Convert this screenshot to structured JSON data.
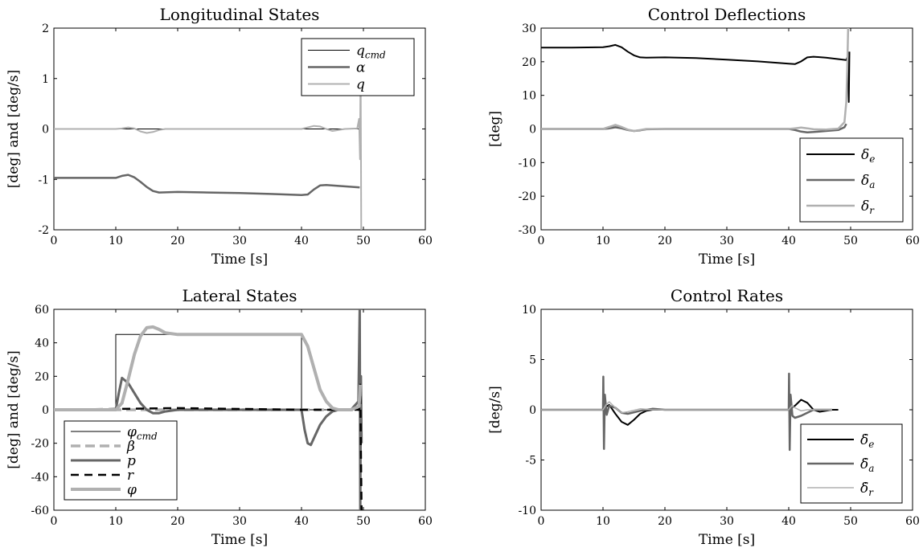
{
  "chart_data": [
    {
      "id": "longitudinal",
      "type": "line",
      "title": "Longitudinal States",
      "xlabel": "Time [s]",
      "ylabel": "[deg] and [deg/s]",
      "xlim": [
        0,
        60
      ],
      "ylim": [
        -2,
        2
      ],
      "xticks": [
        0,
        10,
        20,
        30,
        40,
        50,
        60
      ],
      "yticks": [
        -2,
        -1,
        0,
        1,
        2
      ],
      "legend_position": "top-right",
      "series": [
        {
          "name": "q",
          "sub": "cmd",
          "color": "#000000",
          "width": 1,
          "dash": "",
          "x": [
            0,
            49.5
          ],
          "y": [
            0,
            0
          ]
        },
        {
          "name": "α",
          "sub": "",
          "color": "#666666",
          "width": 2.5,
          "dash": "",
          "x": [
            0,
            10,
            11,
            12,
            13,
            14,
            15,
            16,
            17,
            20,
            25,
            30,
            35,
            40,
            41,
            42,
            43,
            44,
            46,
            49.4
          ],
          "y": [
            -0.97,
            -0.97,
            -0.93,
            -0.91,
            -0.96,
            -1.05,
            -1.15,
            -1.23,
            -1.26,
            -1.25,
            -1.26,
            -1.27,
            -1.29,
            -1.31,
            -1.3,
            -1.2,
            -1.12,
            -1.11,
            -1.13,
            -1.16
          ]
        },
        {
          "name": "q",
          "sub": "",
          "color": "#b0b0b0",
          "width": 2,
          "dash": "",
          "x": [
            0,
            10,
            11,
            12,
            13,
            14,
            15,
            16,
            17,
            18,
            20,
            40,
            41,
            42,
            43,
            44,
            45,
            46,
            47,
            49.0,
            49.3,
            49.45,
            49.55,
            49.65
          ],
          "y": [
            0,
            0,
            0.01,
            0.03,
            0.01,
            -0.05,
            -0.08,
            -0.06,
            -0.02,
            0,
            0,
            0,
            0.03,
            0.06,
            0.05,
            0,
            -0.04,
            -0.02,
            0,
            0.01,
            0.2,
            -0.6,
            1.5,
            -2
          ]
        }
      ]
    },
    {
      "id": "deflections",
      "type": "line",
      "title": "Control Deflections",
      "xlabel": "Time [s]",
      "ylabel": "[deg]",
      "xlim": [
        0,
        60
      ],
      "ylim": [
        -30,
        30
      ],
      "xticks": [
        0,
        10,
        20,
        30,
        40,
        50,
        60
      ],
      "yticks": [
        -30,
        -20,
        -10,
        0,
        10,
        20,
        30
      ],
      "legend_position": "bottom-right",
      "series": [
        {
          "name": "δ",
          "sub": "e",
          "color": "#000000",
          "width": 2,
          "dash": "",
          "x": [
            0,
            5,
            10,
            11,
            12,
            13,
            14,
            15,
            16,
            17,
            20,
            25,
            30,
            35,
            40,
            41,
            42,
            43,
            44,
            46,
            49.3,
            49.5,
            49.7,
            49.8
          ],
          "y": [
            24.2,
            24.2,
            24.3,
            24.6,
            25.0,
            24.3,
            23.0,
            21.9,
            21.3,
            21.2,
            21.3,
            21.1,
            20.6,
            20.1,
            19.4,
            19.3,
            20.1,
            21.3,
            21.5,
            21.2,
            20.5,
            21.5,
            8,
            23
          ]
        },
        {
          "name": "δ",
          "sub": "a",
          "color": "#666666",
          "width": 2.5,
          "dash": "",
          "x": [
            0,
            10,
            11,
            12,
            13,
            14,
            15,
            16,
            17,
            20,
            40,
            41,
            42,
            43,
            44,
            46,
            48,
            49.0,
            49.3
          ],
          "y": [
            0,
            0,
            0.2,
            0.5,
            0.2,
            -0.3,
            -0.6,
            -0.4,
            -0.1,
            0,
            0,
            -0.3,
            -0.8,
            -1.0,
            -0.9,
            -0.6,
            -0.3,
            0.5,
            1.5
          ]
        },
        {
          "name": "δ",
          "sub": "r",
          "color": "#b0b0b0",
          "width": 2.5,
          "dash": "",
          "x": [
            0,
            10,
            11,
            12,
            13,
            14,
            15,
            16,
            17,
            20,
            40,
            41,
            42,
            43,
            44,
            46,
            48,
            49.0,
            49.3,
            49.45,
            49.6
          ],
          "y": [
            0,
            0,
            0.6,
            1.2,
            0.6,
            -0.2,
            -0.6,
            -0.3,
            0,
            0,
            0,
            0.2,
            0.4,
            0.2,
            -0.1,
            -0.2,
            0.1,
            2,
            8,
            18,
            30
          ]
        }
      ]
    },
    {
      "id": "lateral",
      "type": "line",
      "title": "Lateral States",
      "xlabel": "Time [s]",
      "ylabel": "[deg] and [deg/s]",
      "xlim": [
        0,
        60
      ],
      "ylim": [
        -60,
        60
      ],
      "xticks": [
        0,
        10,
        20,
        30,
        40,
        50,
        60
      ],
      "yticks": [
        -60,
        -40,
        -20,
        0,
        20,
        40,
        60
      ],
      "legend_position": "bottom-left",
      "series": [
        {
          "name": "φ",
          "sub": "cmd",
          "color": "#000000",
          "width": 1,
          "dash": "",
          "x": [
            0,
            10,
            10,
            40,
            40,
            49.5
          ],
          "y": [
            0,
            0,
            45,
            45,
            0,
            0
          ]
        },
        {
          "name": "β",
          "sub": "",
          "color": "#b0b0b0",
          "width": 3.5,
          "dash": "12,6",
          "x": [
            0,
            10,
            20,
            30,
            40,
            45,
            49.5
          ],
          "y": [
            0,
            0,
            0,
            0,
            0,
            0,
            0
          ]
        },
        {
          "name": "p",
          "sub": "",
          "color": "#666666",
          "width": 3,
          "dash": "",
          "x": [
            0,
            10,
            10.5,
            11,
            12,
            13,
            14,
            15,
            16,
            17,
            18,
            20,
            40,
            40.5,
            41,
            41.5,
            42,
            43,
            44,
            45,
            46,
            48,
            49.2,
            49.4,
            49.5,
            49.6,
            49.7
          ],
          "y": [
            0,
            0,
            10,
            19,
            16,
            10,
            4,
            0,
            -2,
            -2,
            -1,
            0,
            0,
            -12,
            -20,
            -21,
            -17,
            -9,
            -4,
            -1,
            0,
            0,
            5,
            60,
            -60,
            20,
            -20
          ]
        },
        {
          "name": "r",
          "sub": "",
          "color": "#000000",
          "width": 2.5,
          "dash": "10,7",
          "x": [
            0,
            20,
            40,
            49.3,
            49.5,
            49.6,
            49.7
          ],
          "y": [
            0,
            1,
            0,
            0,
            15,
            -25,
            -60
          ]
        },
        {
          "name": "φ",
          "sub": "",
          "color": "#b0b0b0",
          "width": 4,
          "dash": "",
          "x": [
            0,
            10,
            11,
            12,
            13,
            14,
            15,
            16,
            17,
            18,
            20,
            25,
            30,
            35,
            40,
            41,
            42,
            43,
            44,
            45,
            46,
            48,
            49.3,
            49.5
          ],
          "y": [
            0,
            0,
            4,
            18,
            33,
            44,
            49,
            49.5,
            48,
            46,
            45,
            45,
            45,
            45,
            45,
            38,
            25,
            12,
            5,
            1,
            0,
            0,
            2,
            15
          ]
        }
      ]
    },
    {
      "id": "rates",
      "type": "line",
      "title": "Control Rates",
      "xlabel": "Time [s]",
      "ylabel": "[deg/s]",
      "xlim": [
        0,
        60
      ],
      "ylim": [
        -10,
        10
      ],
      "xticks": [
        0,
        10,
        20,
        30,
        40,
        50,
        60
      ],
      "yticks": [
        -10,
        -5,
        0,
        5,
        10
      ],
      "legend_position": "bottom-right",
      "series": [
        {
          "name": "δ̇",
          "sub": "e",
          "color": "#000000",
          "width": 2,
          "dash": "",
          "x": [
            0,
            10,
            10.5,
            11,
            12,
            13,
            14,
            15,
            16,
            17,
            18,
            20,
            40,
            41,
            42,
            43,
            44,
            45,
            46,
            47,
            48
          ],
          "y": [
            0,
            0,
            0.3,
            0.5,
            -0.4,
            -1.2,
            -1.5,
            -1.0,
            -0.4,
            -0.1,
            0,
            0,
            0,
            0.4,
            1.0,
            0.7,
            0,
            -0.2,
            -0.1,
            0,
            0
          ]
        },
        {
          "name": "δ̇",
          "sub": "a",
          "color": "#666666",
          "width": 2.5,
          "dash": "",
          "x": [
            0,
            10,
            10.05,
            10.15,
            10.3,
            10.6,
            11,
            12,
            13,
            14,
            16,
            18,
            20,
            40,
            40.05,
            40.15,
            40.3,
            40.6,
            41,
            42,
            43,
            44,
            46,
            47
          ],
          "y": [
            0,
            0,
            3.3,
            -3.9,
            1.5,
            -0.5,
            0.4,
            0.2,
            -0.3,
            -0.4,
            -0.1,
            0.1,
            0,
            0,
            3.6,
            -4.0,
            1.5,
            -0.6,
            -0.8,
            -0.6,
            -0.3,
            0,
            0,
            0
          ]
        },
        {
          "name": "δ̇",
          "sub": "r",
          "color": "#b0b0b0",
          "width": 1.5,
          "dash": "",
          "x": [
            0,
            10,
            10.5,
            11,
            12,
            13,
            14,
            16,
            18,
            20,
            40,
            40.5,
            41,
            42,
            43,
            44,
            46,
            47
          ],
          "y": [
            0,
            0,
            0.5,
            0.8,
            0.2,
            -0.3,
            -0.2,
            0.1,
            0,
            0,
            0,
            0.4,
            0.2,
            -0.1,
            0,
            0,
            0,
            0
          ]
        }
      ]
    }
  ]
}
